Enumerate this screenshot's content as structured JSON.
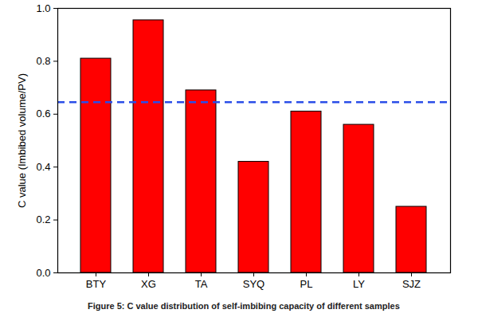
{
  "chart_data": {
    "type": "bar",
    "caption": "Figure 5: C value distribution of self-imbibing capacity of different samples",
    "y_label": "C value (Imbibed volume/PV)",
    "categories": [
      "BTY",
      "XG",
      "TA",
      "SYQ",
      "PL",
      "LY",
      "SJZ"
    ],
    "values": [
      0.81,
      0.955,
      0.69,
      0.42,
      0.61,
      0.56,
      0.25
    ],
    "color": "#ff0000",
    "reference_line": 0.645,
    "ylim": [
      0,
      1.0
    ],
    "yticks": [
      {
        "value": 0,
        "label": "0.0"
      },
      0.2,
      0.4,
      0.6,
      0.8,
      {
        "value": 1.0,
        "label": "1.0"
      }
    ],
    "grid": false
  }
}
